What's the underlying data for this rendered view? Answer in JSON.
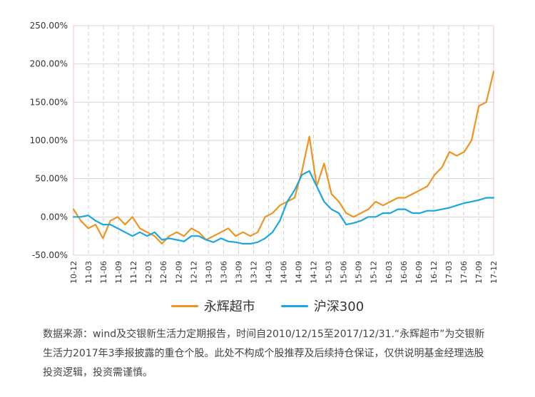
{
  "chart_data": {
    "type": "line",
    "y_ticks": [
      "250.00%",
      "200.00%",
      "150.00%",
      "100.00%",
      "50.00%",
      "0.00%",
      "-50.00%"
    ],
    "ylim": [
      -50,
      250
    ],
    "x_ticks": [
      "10-12",
      "11-03",
      "11-06",
      "11-09",
      "11-12",
      "12-03",
      "12-06",
      "12-09",
      "12-12",
      "13-03",
      "13-06",
      "13-09",
      "13-12",
      "14-03",
      "14-06",
      "14-09",
      "14-12",
      "15-03",
      "15-06",
      "15-09",
      "15-12",
      "16-03",
      "16-06",
      "16-09",
      "16-12",
      "17-03",
      "17-06",
      "17-09",
      "17-12"
    ],
    "grid": true,
    "legend_position": "bottom",
    "series": [
      {
        "name": "永辉超市",
        "color": "#F0931F",
        "values": [
          10,
          -5,
          -15,
          -10,
          -28,
          -5,
          0,
          -10,
          0,
          -15,
          -20,
          -25,
          -35,
          -25,
          -20,
          -25,
          -15,
          -20,
          -30,
          -25,
          -20,
          -15,
          -25,
          -20,
          -25,
          -20,
          0,
          5,
          15,
          20,
          25,
          60,
          105,
          40,
          70,
          30,
          20,
          5,
          0,
          5,
          10,
          20,
          15,
          20,
          25,
          25,
          30,
          35,
          40,
          55,
          65,
          85,
          80,
          85,
          100,
          145,
          150,
          190
        ]
      },
      {
        "name": "沪深300",
        "color": "#1AA7E0",
        "values": [
          0,
          0,
          2,
          -5,
          -10,
          -10,
          -15,
          -20,
          -25,
          -20,
          -25,
          -20,
          -30,
          -28,
          -30,
          -32,
          -25,
          -25,
          -30,
          -33,
          -28,
          -32,
          -33,
          -35,
          -35,
          -33,
          -28,
          -20,
          -5,
          20,
          35,
          55,
          60,
          40,
          20,
          10,
          5,
          -10,
          -8,
          -5,
          0,
          0,
          5,
          5,
          10,
          10,
          5,
          5,
          8,
          8,
          10,
          12,
          15,
          18,
          20,
          22,
          25,
          25
        ]
      }
    ]
  },
  "footnote": "数据来源：wind及交银新生活力定期报告，时间自2010/12/15至2017/12/31.“永辉超市”为交银新生活力2017年3季报披露的重仓个股。此处不构成个股推荐及后续持仓保证，仅供说明基金经理选股投资逻辑，投资需谨慎。"
}
